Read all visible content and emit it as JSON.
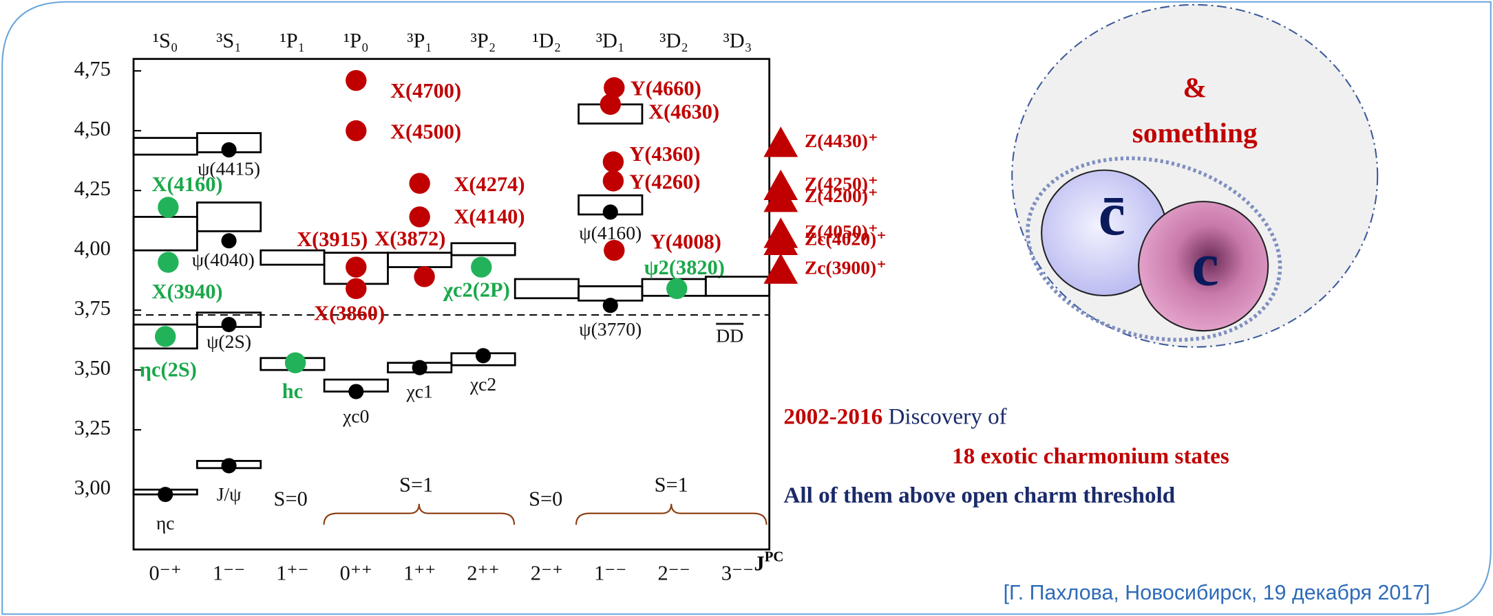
{
  "chart_data": {
    "type": "spectrum",
    "ylim": [
      2.75,
      4.8
    ],
    "yticks": [
      {
        "value": 3.0,
        "label": "3,00"
      },
      {
        "value": 3.25,
        "label": "3,25"
      },
      {
        "value": 3.5,
        "label": "3,50"
      },
      {
        "value": 3.75,
        "label": "3,75"
      },
      {
        "value": 4.0,
        "label": "4,00"
      },
      {
        "value": 4.25,
        "label": "4,25"
      },
      {
        "value": 4.5,
        "label": "4,50"
      },
      {
        "value": 4.75,
        "label": "4,75"
      }
    ],
    "x_label": "J",
    "x_label_sup": "PC",
    "colors": {
      "known": "#000000",
      "candidate": "#22b35a",
      "exotic": "#c00000",
      "level": "#000000"
    },
    "threshold": {
      "mass": 3.73,
      "label": "DD"
    },
    "columns": [
      {
        "term": "¹S₀",
        "jpc": "0⁻⁺",
        "levels": [
          [
            2.98,
            3.0
          ],
          [
            3.59,
            3.69
          ],
          [
            4.0,
            4.14
          ],
          [
            4.4,
            4.47
          ]
        ],
        "states": [
          {
            "mass": 2.98,
            "kind": "known",
            "label": "ηc"
          },
          {
            "mass": 3.64,
            "kind": "candidate",
            "label": "ηc(2S)"
          },
          {
            "mass": 3.95,
            "kind": "candidate",
            "label": "X(3940)"
          },
          {
            "mass": 4.18,
            "kind": "candidate",
            "label": "X(4160)"
          }
        ]
      },
      {
        "term": "³S₁",
        "jpc": "1⁻⁻",
        "levels": [
          [
            3.09,
            3.12
          ],
          [
            3.68,
            3.74
          ],
          [
            4.08,
            4.2
          ],
          [
            4.41,
            4.49
          ]
        ],
        "states": [
          {
            "mass": 3.1,
            "kind": "known",
            "label": "J/ψ"
          },
          {
            "mass": 3.69,
            "kind": "known",
            "label": "ψ(2S)"
          },
          {
            "mass": 4.04,
            "kind": "known",
            "label": "ψ(4040)"
          },
          {
            "mass": 4.42,
            "kind": "known",
            "label": "ψ(4415)"
          }
        ]
      },
      {
        "term": "¹P₁",
        "jpc": "1⁺⁻",
        "levels": [
          [
            3.5,
            3.55
          ],
          [
            3.94,
            4.0
          ]
        ],
        "states": [
          {
            "mass": 3.53,
            "kind": "candidate",
            "label": "hc"
          }
        ]
      },
      {
        "term": "¹P₀",
        "jpc": "0⁺⁺",
        "levels": [
          [
            3.41,
            3.46
          ],
          [
            3.86,
            3.99
          ]
        ],
        "states": [
          {
            "mass": 3.41,
            "kind": "known",
            "label": "χc0"
          },
          {
            "mass": 3.84,
            "kind": "exotic",
            "label": "X(3860)"
          },
          {
            "mass": 3.93,
            "kind": "exotic",
            "label": "X(3915)"
          },
          {
            "mass": 4.5,
            "kind": "exotic",
            "label": "X(4500)"
          },
          {
            "mass": 4.71,
            "kind": "exotic",
            "label": "X(4700)"
          }
        ]
      },
      {
        "term": "³P₁",
        "jpc": "1⁺⁺",
        "levels": [
          [
            3.49,
            3.53
          ],
          [
            3.93,
            3.99
          ]
        ],
        "states": [
          {
            "mass": 3.51,
            "kind": "known",
            "label": "χc1"
          },
          {
            "mass": 3.89,
            "kind": "exotic",
            "label": "X(3872)"
          },
          {
            "mass": 4.14,
            "kind": "exotic",
            "label": "X(4140)"
          },
          {
            "mass": 4.28,
            "kind": "exotic",
            "label": "X(4274)"
          }
        ]
      },
      {
        "term": "³P₂",
        "jpc": "2⁺⁺",
        "levels": [
          [
            3.52,
            3.57
          ],
          [
            3.98,
            4.03
          ]
        ],
        "states": [
          {
            "mass": 3.56,
            "kind": "known",
            "label": "χc2"
          },
          {
            "mass": 3.93,
            "kind": "candidate",
            "label": "χc2(2P)"
          }
        ]
      },
      {
        "term": "¹D₂",
        "jpc": "2⁻⁺",
        "levels": [
          [
            3.8,
            3.88
          ]
        ],
        "states": []
      },
      {
        "term": "³D₁",
        "jpc": "1⁻⁻",
        "levels": [
          [
            3.79,
            3.85
          ],
          [
            4.15,
            4.23
          ],
          [
            4.53,
            4.61
          ]
        ],
        "states": [
          {
            "mass": 3.77,
            "kind": "known",
            "label": "ψ(3770)"
          },
          {
            "mass": 4.0,
            "kind": "exotic",
            "label": "Y(4008)"
          },
          {
            "mass": 4.16,
            "kind": "known",
            "label": "ψ(4160)"
          },
          {
            "mass": 4.29,
            "kind": "exotic",
            "label": "Y(4260)"
          },
          {
            "mass": 4.37,
            "kind": "exotic",
            "label": "Y(4360)"
          },
          {
            "mass": 4.61,
            "kind": "exotic",
            "label": "X(4630)"
          },
          {
            "mass": 4.68,
            "kind": "exotic",
            "label": "Y(4660)"
          }
        ]
      },
      {
        "term": "³D₂",
        "jpc": "2⁻⁻",
        "levels": [
          [
            3.81,
            3.88
          ]
        ],
        "states": [
          {
            "mass": 3.84,
            "kind": "candidate",
            "label": "ψ2(3820)"
          }
        ]
      },
      {
        "term": "³D₃",
        "jpc": "3⁻⁻",
        "levels": [
          [
            3.81,
            3.89
          ]
        ],
        "states": []
      }
    ],
    "charged_states": [
      {
        "mass": 4.43,
        "label": "Z(4430)⁺"
      },
      {
        "mass": 4.25,
        "label": "Z(4250)⁺"
      },
      {
        "mass": 4.2,
        "label": "Z(4200)⁺"
      },
      {
        "mass": 4.05,
        "label": "Z(4050)⁺"
      },
      {
        "mass": 4.02,
        "label": "Zc(4020)⁺"
      },
      {
        "mass": 3.9,
        "label": "Zc(3900)⁺"
      }
    ],
    "spin_groups": [
      {
        "label": "S=0"
      },
      {
        "label": "S=1"
      },
      {
        "label": "S=0"
      },
      {
        "label": "S=1"
      }
    ]
  },
  "inset": {
    "top": "&",
    "bottom": "something",
    "antiquark": "c̄",
    "quark": "c"
  },
  "discovery": {
    "years": "2002-2016",
    "text": "Discovery of",
    "count": "18 exotic charmonium states",
    "note": "All of them above open charm threshold"
  },
  "citation": "[Г. Пахлова, Новосибирск, 19 декабря 2017]"
}
